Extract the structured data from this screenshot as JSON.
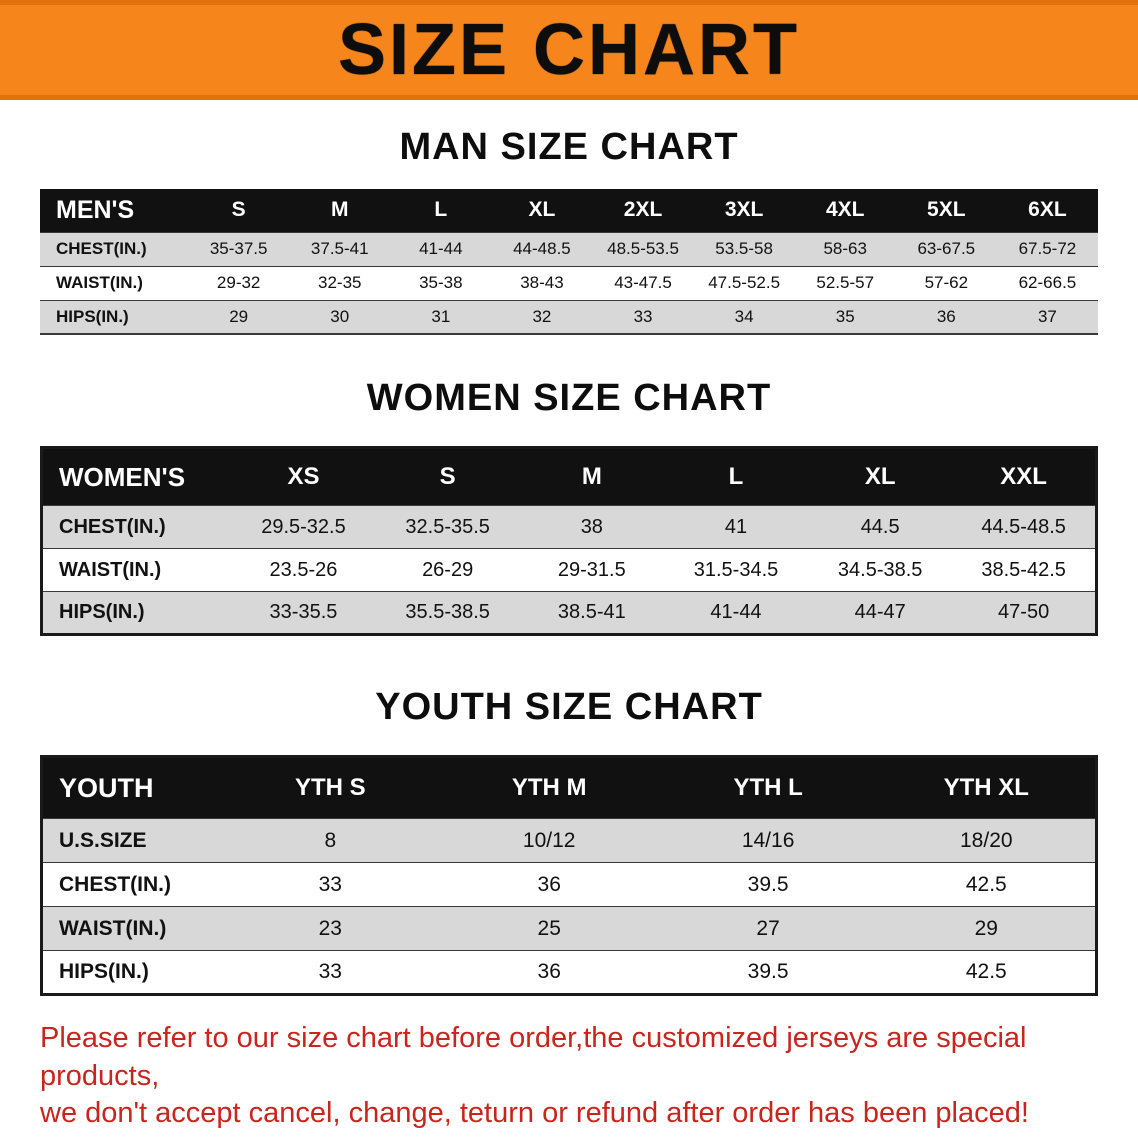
{
  "banner": {
    "title": "SIZE CHART"
  },
  "sections": [
    {
      "id": "men",
      "heading": "MAN SIZE CHART",
      "table": {
        "header": [
          "MEN'S",
          "S",
          "M",
          "L",
          "XL",
          "2XL",
          "3XL",
          "4XL",
          "5XL",
          "6XL"
        ],
        "rows": [
          [
            "CHEST(IN.)",
            "35-37.5",
            "37.5-41",
            "41-44",
            "44-48.5",
            "48.5-53.5",
            "53.5-58",
            "58-63",
            "63-67.5",
            "67.5-72"
          ],
          [
            "WAIST(IN.)",
            "29-32",
            "32-35",
            "35-38",
            "38-43",
            "43-47.5",
            "47.5-52.5",
            "52.5-57",
            "57-62",
            "62-66.5"
          ],
          [
            "HIPS(IN.)",
            "29",
            "30",
            "31",
            "32",
            "33",
            "34",
            "35",
            "36",
            "37"
          ]
        ]
      }
    },
    {
      "id": "women",
      "heading": "WOMEN SIZE CHART",
      "table": {
        "header": [
          "WOMEN'S",
          "XS",
          "S",
          "M",
          "L",
          "XL",
          "XXL"
        ],
        "rows": [
          [
            "CHEST(IN.)",
            "29.5-32.5",
            "32.5-35.5",
            "38",
            "41",
            "44.5",
            "44.5-48.5"
          ],
          [
            "WAIST(IN.)",
            "23.5-26",
            "26-29",
            "29-31.5",
            "31.5-34.5",
            "34.5-38.5",
            "38.5-42.5"
          ],
          [
            "HIPS(IN.)",
            "33-35.5",
            "35.5-38.5",
            "38.5-41",
            "41-44",
            "44-47",
            "47-50"
          ]
        ]
      }
    },
    {
      "id": "youth",
      "heading": "YOUTH SIZE CHART",
      "table": {
        "header": [
          "YOUTH",
          "YTH S",
          "YTH M",
          "YTH L",
          "YTH XL"
        ],
        "rows": [
          [
            "U.S.SIZE",
            "8",
            "10/12",
            "14/16",
            "18/20"
          ],
          [
            "CHEST(IN.)",
            "33",
            "36",
            "39.5",
            "42.5"
          ],
          [
            "WAIST(IN.)",
            "23",
            "25",
            "27",
            "29"
          ],
          [
            "HIPS(IN.)",
            "33",
            "36",
            "39.5",
            "42.5"
          ]
        ]
      }
    }
  ],
  "footer": {
    "line1": "Please refer to our size chart before order,the customized jerseys are special products,",
    "line2": "we don't accept cancel, change, teturn or refund after order has been placed!"
  },
  "colors": {
    "banner_bg": "#f6861c",
    "header_bg": "#111111",
    "row_alt": "#d8d8d8",
    "footer_text": "#c9251d"
  }
}
